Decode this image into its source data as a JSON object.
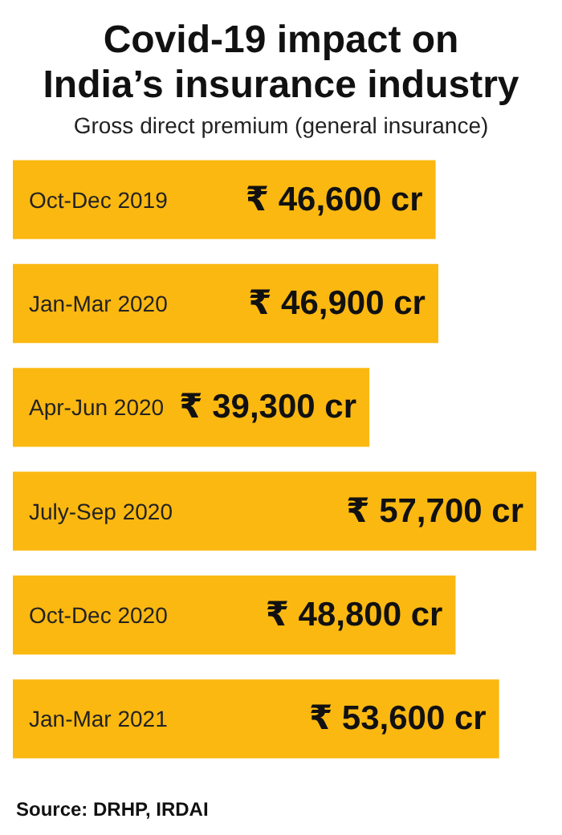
{
  "chart_data": {
    "type": "bar",
    "orientation": "horizontal",
    "title": "Covid-19 impact on\nIndia’s insurance industry",
    "subtitle": "Gross direct premium (general insurance)",
    "categories": [
      "Oct-Dec 2019",
      "Jan-Mar 2020",
      "Apr-Jun 2020",
      "July-Sep 2020",
      "Oct-Dec 2020",
      "Jan-Mar 2021"
    ],
    "values": [
      46600,
      46900,
      39300,
      57700,
      48800,
      53600
    ],
    "value_labels": [
      "₹ 46,600 cr",
      "₹ 46,900 cr",
      "₹ 39,300 cr",
      "₹ 57,700 cr",
      "₹ 48,800 cr",
      "₹ 53,600 cr"
    ],
    "color": "#fbb811",
    "annotations": [
      "Source: DRHP, IRDAI"
    ]
  }
}
